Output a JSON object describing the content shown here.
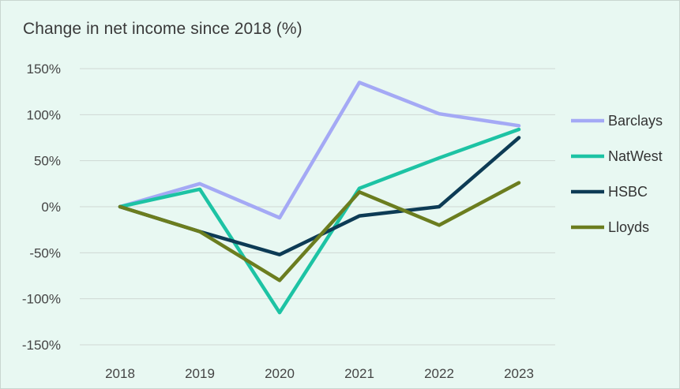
{
  "chart_data": {
    "type": "line",
    "title": "Change in net income since 2018 (%)",
    "xlabel": "",
    "ylabel": "",
    "categories": [
      "2018",
      "2019",
      "2020",
      "2021",
      "2022",
      "2023"
    ],
    "ylim": [
      -150,
      150
    ],
    "yticks": [
      150,
      100,
      50,
      0,
      -50,
      -100,
      -150
    ],
    "ytick_labels": [
      "150%",
      "100%",
      "50%",
      "0%",
      "-50%",
      "-100%",
      "-150%"
    ],
    "grid": "horizontal",
    "legend": "right",
    "series": [
      {
        "name": "Barclays",
        "color": "#a4a9f5",
        "values": [
          0,
          25,
          -12,
          135,
          101,
          88
        ]
      },
      {
        "name": "NatWest",
        "color": "#1dc3a4",
        "values": [
          0,
          19,
          -115,
          20,
          53,
          84
        ]
      },
      {
        "name": "HSBC",
        "color": "#0d3b55",
        "values": [
          0,
          -27,
          -52,
          -10,
          0,
          75
        ]
      },
      {
        "name": "Lloyds",
        "color": "#6b7d1f",
        "values": [
          0,
          -27,
          -80,
          16,
          -20,
          26
        ]
      }
    ]
  }
}
